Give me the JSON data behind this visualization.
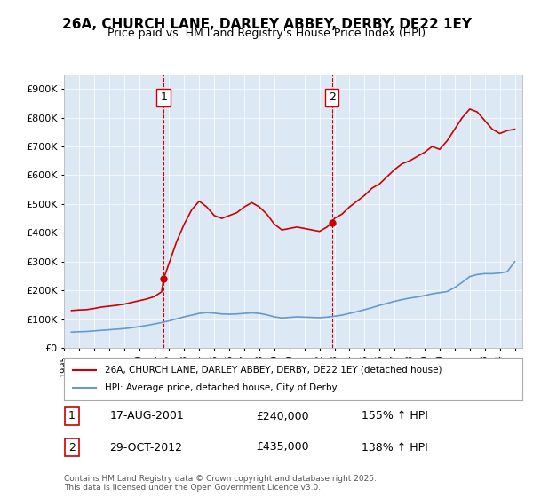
{
  "title": "26A, CHURCH LANE, DARLEY ABBEY, DERBY, DE22 1EY",
  "subtitle": "Price paid vs. HM Land Registry's House Price Index (HPI)",
  "background_color": "#dce9f5",
  "plot_bg_color": "#dce9f5",
  "legend_label_red": "26A, CHURCH LANE, DARLEY ABBEY, DERBY, DE22 1EY (detached house)",
  "legend_label_blue": "HPI: Average price, detached house, City of Derby",
  "purchase1_label": "1",
  "purchase1_date": "17-AUG-2001",
  "purchase1_price": "£240,000",
  "purchase1_hpi": "155% ↑ HPI",
  "purchase1_year": 2001.63,
  "purchase1_value": 240000,
  "purchase2_label": "2",
  "purchase2_date": "29-OCT-2012",
  "purchase2_price": "£435,000",
  "purchase2_hpi": "138% ↑ HPI",
  "purchase2_year": 2012.83,
  "purchase2_value": 435000,
  "footer": "Contains HM Land Registry data © Crown copyright and database right 2025.\nThis data is licensed under the Open Government Licence v3.0.",
  "ylim": [
    0,
    950000
  ],
  "xlim_start": 1995,
  "xlim_end": 2025.5,
  "red_line_color": "#cc0000",
  "blue_line_color": "#6699cc",
  "vline_color": "#cc0000",
  "red_data": {
    "years": [
      1995.5,
      1996.0,
      1996.5,
      1997.0,
      1997.5,
      1998.0,
      1998.5,
      1999.0,
      1999.5,
      2000.0,
      2000.5,
      2001.0,
      2001.5,
      2001.63,
      2002.0,
      2002.5,
      2003.0,
      2003.5,
      2004.0,
      2004.5,
      2005.0,
      2005.5,
      2006.0,
      2006.5,
      2007.0,
      2007.5,
      2008.0,
      2008.5,
      2009.0,
      2009.5,
      2010.0,
      2010.5,
      2011.0,
      2011.5,
      2012.0,
      2012.5,
      2012.83,
      2013.0,
      2013.5,
      2014.0,
      2014.5,
      2015.0,
      2015.5,
      2016.0,
      2016.5,
      2017.0,
      2017.5,
      2018.0,
      2018.5,
      2019.0,
      2019.5,
      2020.0,
      2020.5,
      2021.0,
      2021.5,
      2022.0,
      2022.5,
      2023.0,
      2023.5,
      2024.0,
      2024.5,
      2025.0
    ],
    "values": [
      130000,
      132000,
      133000,
      137000,
      142000,
      145000,
      148000,
      152000,
      158000,
      164000,
      170000,
      178000,
      195000,
      240000,
      295000,
      370000,
      430000,
      480000,
      510000,
      490000,
      460000,
      450000,
      460000,
      470000,
      490000,
      505000,
      490000,
      465000,
      430000,
      410000,
      415000,
      420000,
      415000,
      410000,
      405000,
      420000,
      435000,
      450000,
      465000,
      490000,
      510000,
      530000,
      555000,
      570000,
      595000,
      620000,
      640000,
      650000,
      665000,
      680000,
      700000,
      690000,
      720000,
      760000,
      800000,
      830000,
      820000,
      790000,
      760000,
      745000,
      755000,
      760000
    ]
  },
  "blue_data": {
    "years": [
      1995.5,
      1996.0,
      1996.5,
      1997.0,
      1997.5,
      1998.0,
      1998.5,
      1999.0,
      1999.5,
      2000.0,
      2000.5,
      2001.0,
      2001.5,
      2002.0,
      2002.5,
      2003.0,
      2003.5,
      2004.0,
      2004.5,
      2005.0,
      2005.5,
      2006.0,
      2006.5,
      2007.0,
      2007.5,
      2008.0,
      2008.5,
      2009.0,
      2009.5,
      2010.0,
      2010.5,
      2011.0,
      2011.5,
      2012.0,
      2012.5,
      2013.0,
      2013.5,
      2014.0,
      2014.5,
      2015.0,
      2015.5,
      2016.0,
      2016.5,
      2017.0,
      2017.5,
      2018.0,
      2018.5,
      2019.0,
      2019.5,
      2020.0,
      2020.5,
      2021.0,
      2021.5,
      2022.0,
      2022.5,
      2023.0,
      2023.5,
      2024.0,
      2024.5,
      2025.0
    ],
    "values": [
      55000,
      56000,
      57000,
      59000,
      61000,
      63000,
      65000,
      67000,
      70000,
      74000,
      78000,
      83000,
      88000,
      94000,
      101000,
      108000,
      114000,
      120000,
      123000,
      121000,
      118000,
      117000,
      118000,
      120000,
      122000,
      120000,
      115000,
      108000,
      104000,
      106000,
      108000,
      107000,
      106000,
      105000,
      107000,
      110000,
      114000,
      120000,
      126000,
      133000,
      140000,
      148000,
      155000,
      162000,
      168000,
      173000,
      177000,
      182000,
      188000,
      192000,
      196000,
      210000,
      228000,
      248000,
      255000,
      258000,
      258000,
      260000,
      265000,
      300000
    ]
  }
}
